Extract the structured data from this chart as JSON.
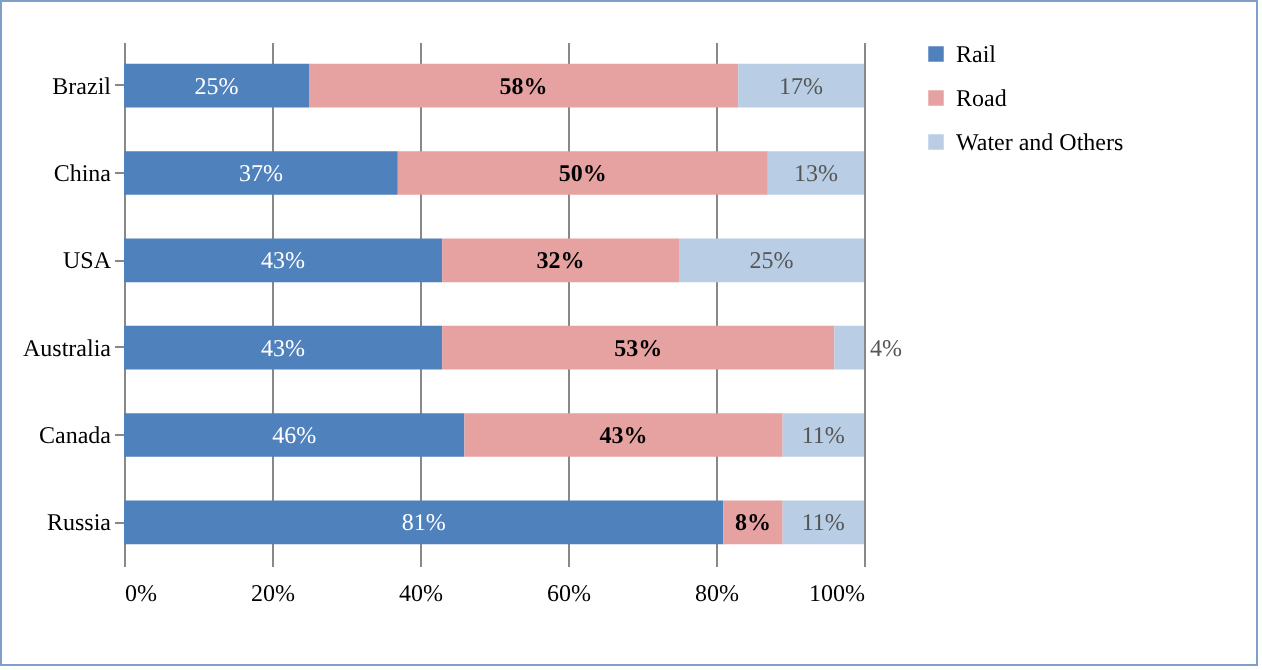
{
  "chart_data": {
    "type": "bar",
    "orientation": "horizontal",
    "stacked": true,
    "categories": [
      "Brazil",
      "China",
      "USA",
      "Australia",
      "Canada",
      "Russia"
    ],
    "series": [
      {
        "name": "Rail",
        "color": "#4f81bd",
        "values": [
          25,
          37,
          43,
          43,
          46,
          81
        ],
        "value_labels": [
          "25%",
          "37%",
          "43%",
          "43%",
          "46%",
          "81%"
        ]
      },
      {
        "name": "Road",
        "color": "#e6a1a1",
        "values": [
          58,
          50,
          32,
          53,
          43,
          8
        ],
        "value_labels": [
          "58%",
          "50%",
          "32%",
          "53%",
          "43%",
          "8%"
        ]
      },
      {
        "name": "Water and Others",
        "color": "#b9cde5",
        "values": [
          17,
          13,
          25,
          4,
          11,
          11
        ],
        "value_labels": [
          "17%",
          "13%",
          "25%",
          "4%",
          "11%",
          "11%"
        ]
      }
    ],
    "xlim": [
      0,
      100
    ],
    "xticks": [
      {
        "value": 0,
        "label": "0%"
      },
      {
        "value": 20,
        "label": "20%"
      },
      {
        "value": 40,
        "label": "40%"
      },
      {
        "value": 60,
        "label": "60%"
      },
      {
        "value": 80,
        "label": "80%"
      },
      {
        "value": 100,
        "label": "100%"
      }
    ],
    "grid": "x",
    "legend": "right"
  }
}
